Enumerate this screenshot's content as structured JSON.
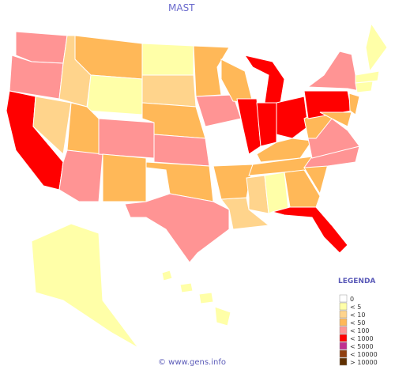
{
  "title": "MAST",
  "legend_title": "LEGENDA",
  "legend": [
    {
      "label": "0",
      "color": "#ffffff"
    },
    {
      "label": "< 5",
      "color": "#ffffa8"
    },
    {
      "label": "< 10",
      "color": "#ffd48c"
    },
    {
      "label": "< 50",
      "color": "#ffb858"
    },
    {
      "label": "< 100",
      "color": "#ff9494"
    },
    {
      "label": "< 1000",
      "color": "#ff0000"
    },
    {
      "label": "< 5000",
      "color": "#c03090"
    },
    {
      "label": "< 10000",
      "color": "#904010"
    },
    {
      "label": "> 10000",
      "color": "#603000"
    }
  ],
  "regions": [
    4,
    4,
    5,
    2,
    2,
    3,
    1,
    3,
    4,
    4,
    3,
    1,
    2,
    3,
    4,
    3,
    3,
    4,
    4,
    3,
    2,
    3,
    5,
    5,
    5,
    5,
    3,
    3,
    2,
    1,
    3,
    5,
    3,
    4,
    4,
    3,
    5,
    4,
    3,
    3,
    0,
    0,
    1,
    1,
    1,
    1,
    1,
    1,
    1,
    1
  ],
  "footer": "© www.gens.info"
}
